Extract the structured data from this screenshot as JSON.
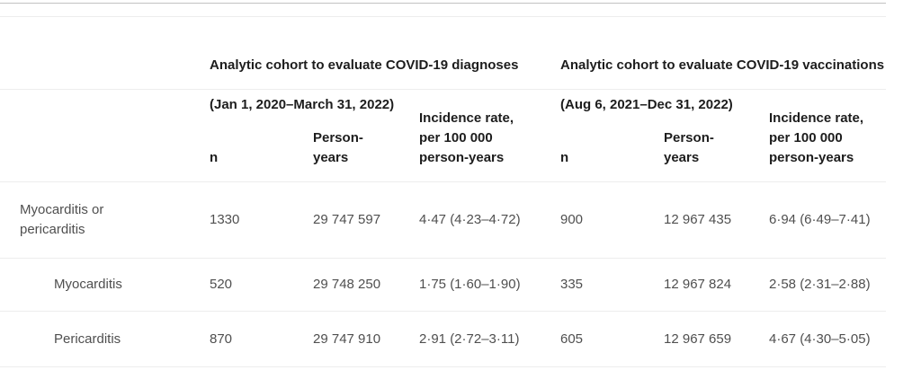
{
  "theme": {
    "background": "#ffffff",
    "header_text": "#1d1d1d",
    "body_text": "#4f4f4f",
    "top_rule": "#c2c2c2",
    "light_rule": "#ededed"
  },
  "table": {
    "groups": [
      {
        "title": "Analytic cohort to evaluate COVID-19 diagnoses",
        "dates": "(Jan 1, 2020–March 31, 2022)"
      },
      {
        "title": "Analytic cohort to evaluate COVID-19 vaccinations",
        "dates": "(Aug 6, 2021–Dec 31, 2022)"
      }
    ],
    "sub_headers": [
      "n",
      "Person-\nyears",
      "Incidence rate,\nper 100 000\nperson-years"
    ],
    "rows": [
      {
        "label": "Myocarditis or pericarditis",
        "values": [
          "1330",
          "29 747 597",
          "4·47 (4·23–4·72)",
          "900",
          "12 967 435",
          "6·94 (6·49–7·41)"
        ]
      },
      {
        "label": "Myocarditis",
        "values": [
          "520",
          "29 748 250",
          "1·75 (1·60–1·90)",
          "335",
          "12 967 824",
          "2·58 (2·31–2·88)"
        ]
      },
      {
        "label": "Pericarditis",
        "values": [
          "870",
          "29 747 910",
          "2·91 (2·72–3·11)",
          "605",
          "12 967 659",
          "4·67 (4·30–5·05)"
        ]
      }
    ]
  }
}
